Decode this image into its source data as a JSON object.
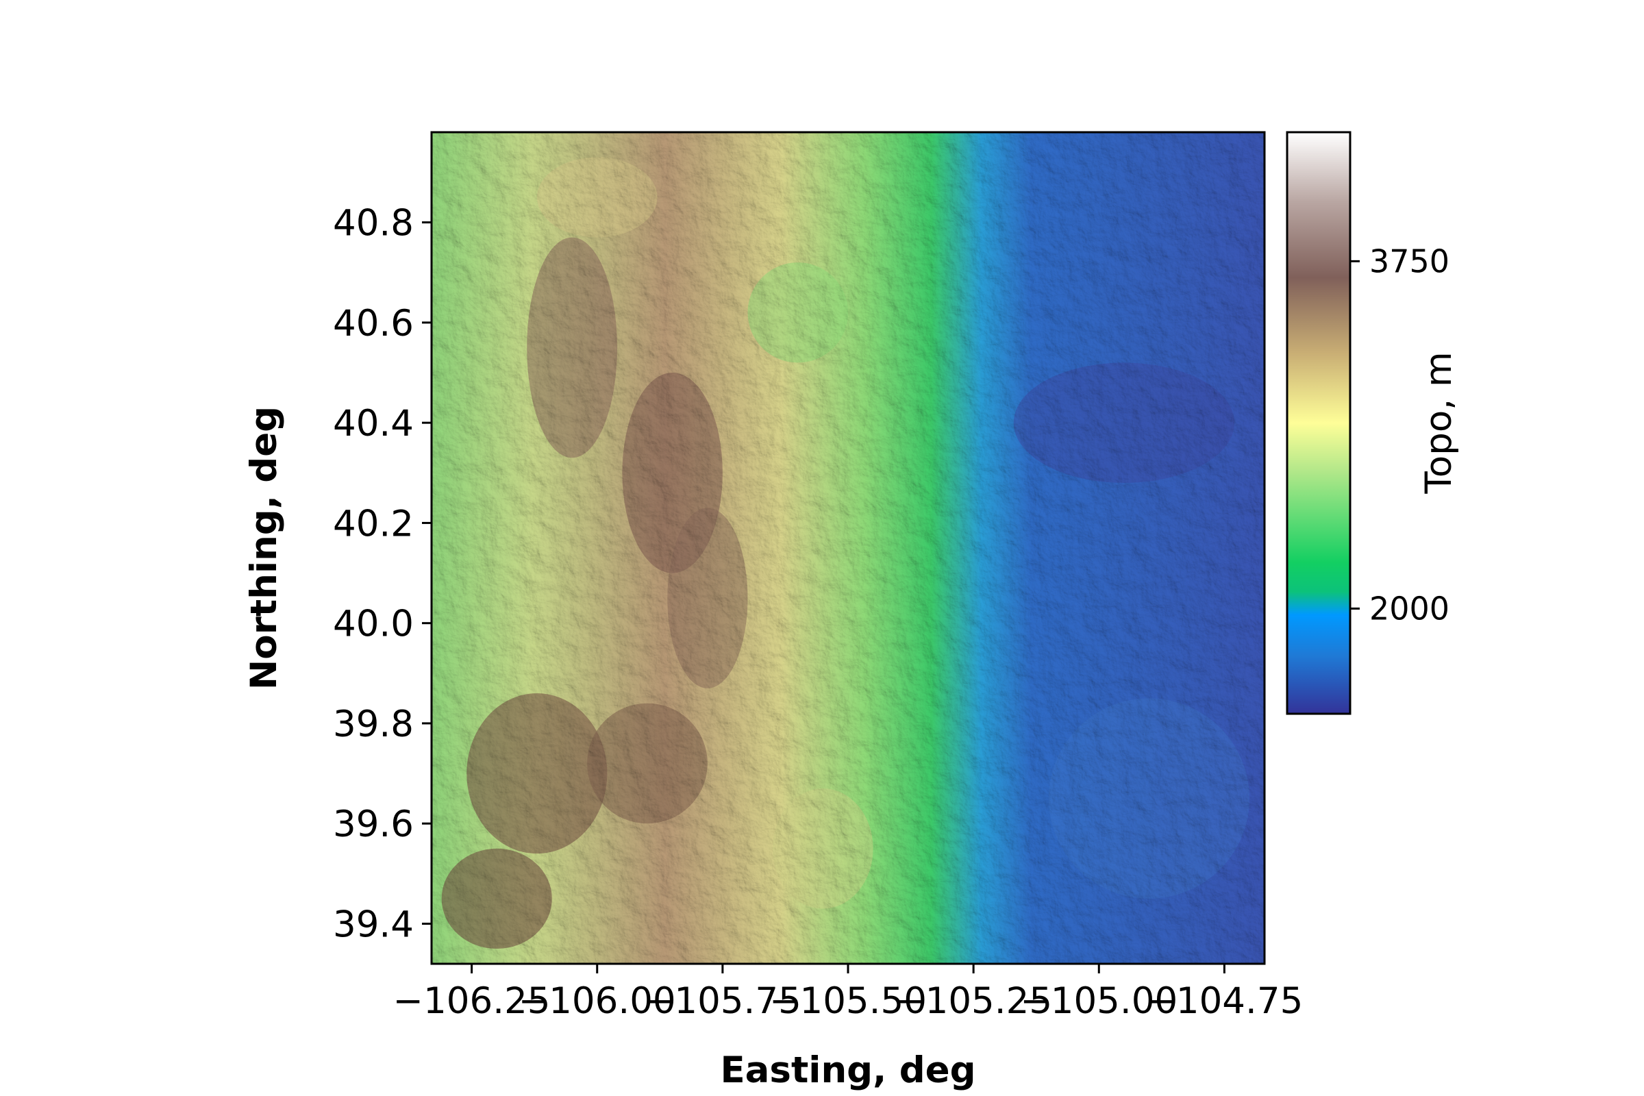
{
  "chart_data": {
    "type": "heatmap",
    "subtype": "shaded-relief topography map",
    "title": "",
    "xlabel": "Easting, deg",
    "ylabel": "Northing, deg",
    "xlim": [
      -106.33,
      -104.67
    ],
    "ylim": [
      39.32,
      40.98
    ],
    "xticks": [
      -106.25,
      -106.0,
      -105.75,
      -105.5,
      -105.25,
      -105.0,
      -104.75
    ],
    "xtick_labels": [
      "−106.25",
      "−106.00",
      "−105.75",
      "−105.50",
      "−105.25",
      "−105.00",
      "−104.75"
    ],
    "yticks": [
      39.4,
      39.6,
      39.8,
      40.0,
      40.2,
      40.4,
      40.6,
      40.8
    ],
    "ytick_labels": [
      "39.4",
      "39.6",
      "39.8",
      "40.0",
      "40.2",
      "40.4",
      "40.6",
      "40.8"
    ],
    "colorbar": {
      "label": "Topo, m",
      "colormap": "terrain",
      "range": [
        1470,
        4400
      ],
      "ticks": [
        2000,
        3750
      ],
      "tick_labels": [
        "2000",
        "3750"
      ]
    },
    "grid": false,
    "legend": "none",
    "regions": [
      {
        "description": "high mountains (brown/white peaks)",
        "x_range": [
          -106.33,
          -105.55
        ],
        "y_range": [
          39.32,
          40.95
        ],
        "elevation_m": [
          3000,
          4300
        ]
      },
      {
        "description": "mid-elevation foothills (yellow/green)",
        "x_range": [
          -105.6,
          -105.2
        ],
        "y_range": [
          39.32,
          40.98
        ],
        "elevation_m": [
          2100,
          2900
        ]
      },
      {
        "description": "plains (blue)",
        "x_range": [
          -105.2,
          -104.67
        ],
        "y_range": [
          39.32,
          40.98
        ],
        "elevation_m": [
          1500,
          1950
        ]
      }
    ]
  }
}
